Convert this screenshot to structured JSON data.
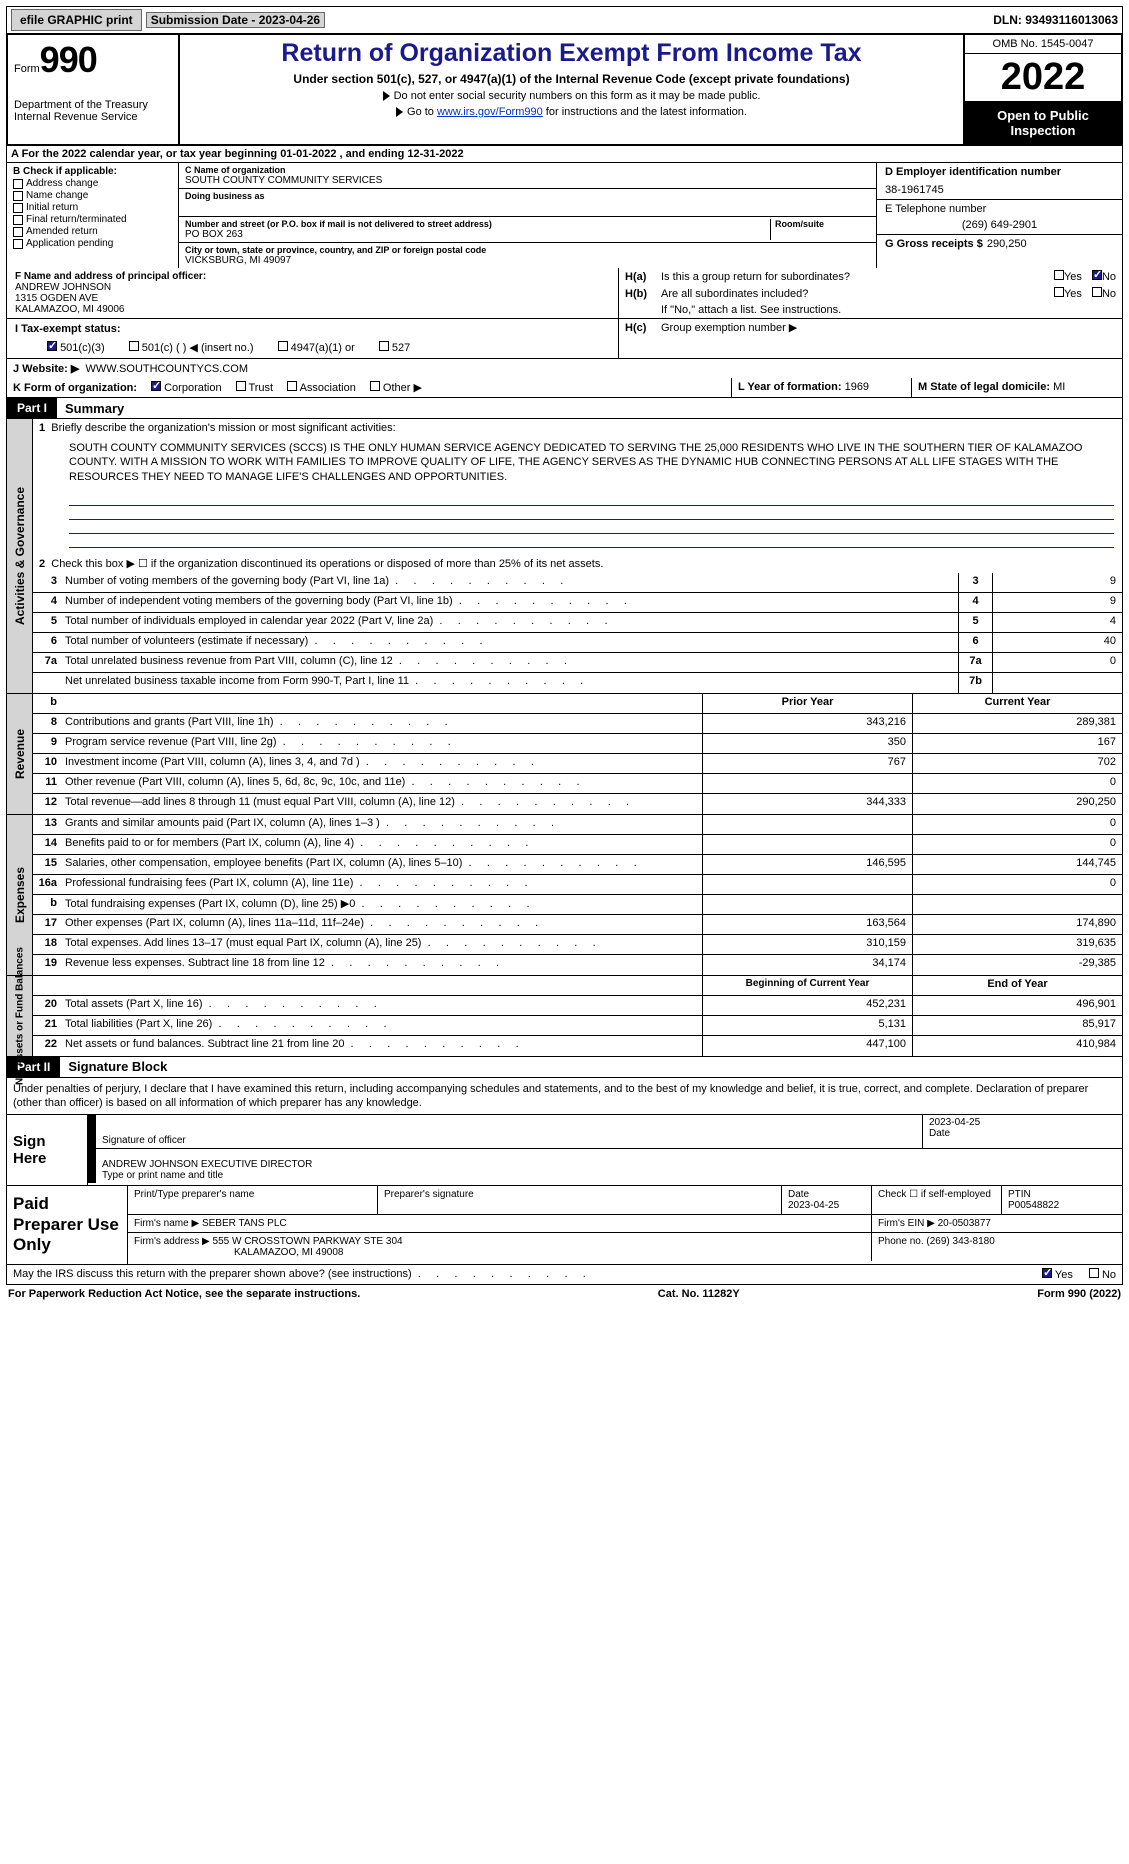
{
  "colors": {
    "accent": "#1a1a8a",
    "link": "#0033cc",
    "gray": "#d4d4d4",
    "black": "#000000",
    "white": "#ffffff"
  },
  "topbar": {
    "efile": "efile GRAPHIC print",
    "submission_label": "Submission Date - 2023-04-26",
    "dln": "DLN: 93493116013063"
  },
  "header": {
    "form_prefix": "Form",
    "form_no": "990",
    "dept": "Department of the Treasury",
    "irs": "Internal Revenue Service",
    "title": "Return of Organization Exempt From Income Tax",
    "sub": "Under section 501(c), 527, or 4947(a)(1) of the Internal Revenue Code (except private foundations)",
    "note1": "Do not enter social security numbers on this form as it may be made public.",
    "note2_pre": "Go to ",
    "note2_link": "www.irs.gov/Form990",
    "note2_post": " for instructions and the latest information.",
    "omb": "OMB No. 1545-0047",
    "year": "2022",
    "open": "Open to Public Inspection"
  },
  "rowA": "A  For the 2022 calendar year, or tax year beginning 01-01-2022    , and ending 12-31-2022",
  "boxB": {
    "label": "B Check if applicable:",
    "items": [
      "Address change",
      "Name change",
      "Initial return",
      "Final return/terminated",
      "Amended return",
      "Application pending"
    ]
  },
  "boxC": {
    "name_lbl": "C Name of organization",
    "name": "SOUTH COUNTY COMMUNITY SERVICES",
    "dba_lbl": "Doing business as",
    "dba": "",
    "addr_lbl": "Number and street (or P.O. box if mail is not delivered to street address)",
    "addr": "PO BOX 263",
    "room_lbl": "Room/suite",
    "city_lbl": "City or town, state or province, country, and ZIP or foreign postal code",
    "city": "VICKSBURG, MI  49097"
  },
  "boxD": {
    "lbl": "D Employer identification number",
    "val": "38-1961745"
  },
  "boxE": {
    "lbl": "E Telephone number",
    "val": "(269) 649-2901"
  },
  "boxG": {
    "lbl": "G Gross receipts $",
    "val": "290,250"
  },
  "boxF": {
    "lbl": "F  Name and address of principal officer:",
    "name": "ANDREW JOHNSON",
    "addr1": "1315 OGDEN AVE",
    "addr2": "KALAMAZOO, MI  49006"
  },
  "boxH": {
    "a_lbl": "H(a)",
    "a_txt": "Is this a group return for subordinates?",
    "b_lbl": "H(b)",
    "b_txt": "Are all subordinates included?",
    "note": "If \"No,\" attach a list. See instructions.",
    "c_lbl": "H(c)",
    "c_txt": "Group exemption number ▶",
    "yes": "Yes",
    "no": "No"
  },
  "boxI": {
    "lbl": "I    Tax-exempt status:",
    "opts": [
      "501(c)(3)",
      "501(c) (   ) ◀ (insert no.)",
      "4947(a)(1) or",
      "527"
    ]
  },
  "boxJ": {
    "lbl": "J    Website: ▶",
    "val": "WWW.SOUTHCOUNTYCS.COM"
  },
  "boxK": {
    "lbl": "K  Form of organization:",
    "opts": [
      "Corporation",
      "Trust",
      "Association",
      "Other ▶"
    ]
  },
  "boxL": {
    "lbl": "L Year of formation:",
    "val": "1969"
  },
  "boxM": {
    "lbl": "M State of legal domicile:",
    "val": "MI"
  },
  "part1": {
    "hdr": "Part I",
    "title": "Summary",
    "line1_lbl": "1",
    "line1_txt": "Briefly describe the organization's mission or most significant activities:",
    "mission": "SOUTH COUNTY COMMUNITY SERVICES (SCCS) IS THE ONLY HUMAN SERVICE AGENCY DEDICATED TO SERVING THE 25,000 RESIDENTS WHO LIVE IN THE SOUTHERN TIER OF KALAMAZOO COUNTY. WITH A MISSION TO WORK WITH FAMILIES TO IMPROVE QUALITY OF LIFE, THE AGENCY SERVES AS THE DYNAMIC HUB CONNECTING PERSONS AT ALL LIFE STAGES WITH THE RESOURCES THEY NEED TO MANAGE LIFE'S CHALLENGES AND OPPORTUNITIES.",
    "side_act": "Activities & Governance",
    "side_rev": "Revenue",
    "side_exp": "Expenses",
    "side_net": "Net Assets or Fund Balances",
    "line2": "Check this box ▶ ☐  if the organization discontinued its operations or disposed of more than 25% of its net assets.",
    "rows_gov": [
      {
        "n": "3",
        "d": "Number of voting members of the governing body (Part VI, line 1a)",
        "box": "3",
        "v": "9"
      },
      {
        "n": "4",
        "d": "Number of independent voting members of the governing body (Part VI, line 1b)",
        "box": "4",
        "v": "9"
      },
      {
        "n": "5",
        "d": "Total number of individuals employed in calendar year 2022 (Part V, line 2a)",
        "box": "5",
        "v": "4"
      },
      {
        "n": "6",
        "d": "Total number of volunteers (estimate if necessary)",
        "box": "6",
        "v": "40"
      },
      {
        "n": "7a",
        "d": "Total unrelated business revenue from Part VIII, column (C), line 12",
        "box": "7a",
        "v": "0"
      },
      {
        "n": "",
        "d": "Net unrelated business taxable income from Form 990-T, Part I, line 11",
        "box": "7b",
        "v": ""
      }
    ],
    "hdr_prior": "Prior Year",
    "hdr_curr": "Current Year",
    "rows_rev": [
      {
        "n": "8",
        "d": "Contributions and grants (Part VIII, line 1h)",
        "p": "343,216",
        "c": "289,381"
      },
      {
        "n": "9",
        "d": "Program service revenue (Part VIII, line 2g)",
        "p": "350",
        "c": "167"
      },
      {
        "n": "10",
        "d": "Investment income (Part VIII, column (A), lines 3, 4, and 7d )",
        "p": "767",
        "c": "702"
      },
      {
        "n": "11",
        "d": "Other revenue (Part VIII, column (A), lines 5, 6d, 8c, 9c, 10c, and 11e)",
        "p": "",
        "c": "0"
      },
      {
        "n": "12",
        "d": "Total revenue—add lines 8 through 11 (must equal Part VIII, column (A), line 12)",
        "p": "344,333",
        "c": "290,250"
      }
    ],
    "rows_exp": [
      {
        "n": "13",
        "d": "Grants and similar amounts paid (Part IX, column (A), lines 1–3 )",
        "p": "",
        "c": "0"
      },
      {
        "n": "14",
        "d": "Benefits paid to or for members (Part IX, column (A), line 4)",
        "p": "",
        "c": "0"
      },
      {
        "n": "15",
        "d": "Salaries, other compensation, employee benefits (Part IX, column (A), lines 5–10)",
        "p": "146,595",
        "c": "144,745"
      },
      {
        "n": "16a",
        "d": "Professional fundraising fees (Part IX, column (A), line 11e)",
        "p": "",
        "c": "0"
      },
      {
        "n": "b",
        "d": "Total fundraising expenses (Part IX, column (D), line 25) ▶0",
        "p": "GRAY",
        "c": "GRAY"
      },
      {
        "n": "17",
        "d": "Other expenses (Part IX, column (A), lines 11a–11d, 11f–24e)",
        "p": "163,564",
        "c": "174,890"
      },
      {
        "n": "18",
        "d": "Total expenses. Add lines 13–17 (must equal Part IX, column (A), line 25)",
        "p": "310,159",
        "c": "319,635"
      },
      {
        "n": "19",
        "d": "Revenue less expenses. Subtract line 18 from line 12",
        "p": "34,174",
        "c": "-29,385"
      }
    ],
    "hdr_begin": "Beginning of Current Year",
    "hdr_end": "End of Year",
    "rows_net": [
      {
        "n": "20",
        "d": "Total assets (Part X, line 16)",
        "p": "452,231",
        "c": "496,901"
      },
      {
        "n": "21",
        "d": "Total liabilities (Part X, line 26)",
        "p": "5,131",
        "c": "85,917"
      },
      {
        "n": "22",
        "d": "Net assets or fund balances. Subtract line 21 from line 20",
        "p": "447,100",
        "c": "410,984"
      }
    ]
  },
  "part2": {
    "hdr": "Part II",
    "title": "Signature Block",
    "decl": "Under penalties of perjury, I declare that I have examined this return, including accompanying schedules and statements, and to the best of my knowledge and belief, it is true, correct, and complete. Declaration of preparer (other than officer) is based on all information of which preparer has any knowledge.",
    "sign_here": "Sign Here",
    "sig_lbl": "Signature of officer",
    "date_lbl": "Date",
    "date_val": "2023-04-25",
    "name_lbl": "Type or print name and title",
    "name_val": "ANDREW JOHNSON  EXECUTIVE DIRECTOR",
    "paid": "Paid Preparer Use Only",
    "p_name_lbl": "Print/Type preparer's name",
    "p_sig_lbl": "Preparer's signature",
    "p_date_lbl": "Date",
    "p_date": "2023-04-25",
    "p_self": "Check ☐ if self-employed",
    "ptin_lbl": "PTIN",
    "ptin": "P00548822",
    "firm_lbl": "Firm's name   ▶",
    "firm": "SEBER TANS PLC",
    "ein_lbl": "Firm's EIN ▶",
    "ein": "20-0503877",
    "faddr_lbl": "Firm's address ▶",
    "faddr1": "555 W CROSSTOWN PARKWAY STE 304",
    "faddr2": "KALAMAZOO, MI  49008",
    "phone_lbl": "Phone no.",
    "phone": "(269) 343-8180",
    "may": "May the IRS discuss this return with the preparer shown above? (see instructions)",
    "yes": "Yes",
    "no": "No"
  },
  "footer": {
    "pra": "For Paperwork Reduction Act Notice, see the separate instructions.",
    "cat": "Cat. No. 11282Y",
    "form": "Form 990 (2022)"
  }
}
